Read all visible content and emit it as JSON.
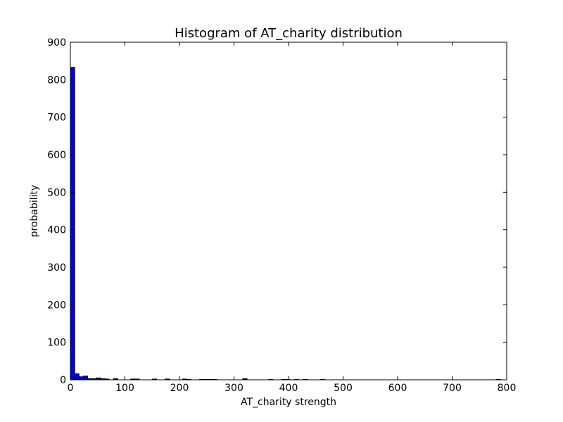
{
  "chart_data": {
    "type": "bar",
    "title": "Histogram of AT_charity  distribution",
    "xlabel": "AT_charity  strength",
    "ylabel": "probability",
    "xlim": [
      0,
      800
    ],
    "ylim": [
      0,
      900
    ],
    "xticks": [
      0,
      100,
      200,
      300,
      400,
      500,
      600,
      700,
      800
    ],
    "yticks": [
      0,
      100,
      200,
      300,
      400,
      500,
      600,
      700,
      800,
      900
    ],
    "grid": false,
    "bar_color": "#0000ff",
    "bin_width": 7.9,
    "bins": [
      {
        "x": 0.0,
        "value": 833
      },
      {
        "x": 7.9,
        "value": 16
      },
      {
        "x": 15.8,
        "value": 8
      },
      {
        "x": 23.7,
        "value": 10
      },
      {
        "x": 31.6,
        "value": 3
      },
      {
        "x": 39.5,
        "value": 3
      },
      {
        "x": 47.4,
        "value": 5
      },
      {
        "x": 55.3,
        "value": 3
      },
      {
        "x": 63.2,
        "value": 2
      },
      {
        "x": 79.0,
        "value": 3
      },
      {
        "x": 110.6,
        "value": 2
      },
      {
        "x": 118.5,
        "value": 2
      },
      {
        "x": 150.1,
        "value": 2
      },
      {
        "x": 173.8,
        "value": 2
      },
      {
        "x": 205.4,
        "value": 2
      },
      {
        "x": 213.3,
        "value": 1
      },
      {
        "x": 237.0,
        "value": 1
      },
      {
        "x": 244.9,
        "value": 1
      },
      {
        "x": 252.8,
        "value": 1
      },
      {
        "x": 260.7,
        "value": 1
      },
      {
        "x": 316.0,
        "value": 3
      },
      {
        "x": 363.4,
        "value": 1
      },
      {
        "x": 387.1,
        "value": 1
      },
      {
        "x": 395.0,
        "value": 1
      },
      {
        "x": 410.8,
        "value": 1
      },
      {
        "x": 426.6,
        "value": 1
      },
      {
        "x": 458.2,
        "value": 1
      },
      {
        "x": 781.0,
        "value": 1
      }
    ]
  }
}
